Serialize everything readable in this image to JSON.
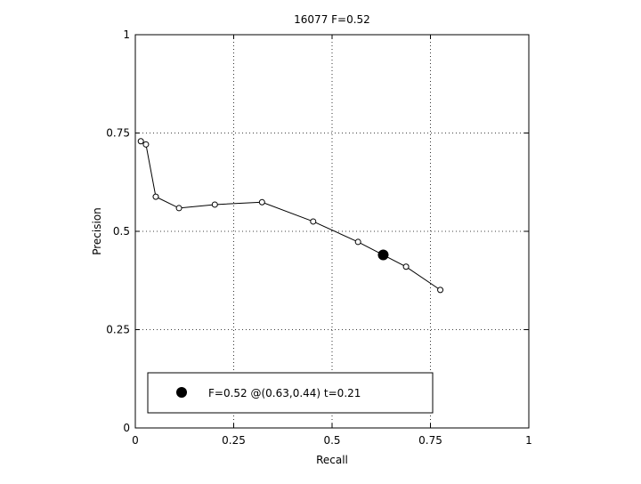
{
  "chart_data": {
    "type": "line",
    "title": "16077 F=0.52",
    "xlabel": "Recall",
    "ylabel": "Precision",
    "xlim": [
      0,
      1
    ],
    "ylim": [
      0,
      1
    ],
    "grid": true,
    "xticks": [
      0,
      0.25,
      0.5,
      0.75,
      1
    ],
    "yticks": [
      0,
      0.25,
      0.5,
      0.75,
      1
    ],
    "xtick_labels": [
      "0",
      "0.25",
      "0.5",
      "0.75",
      "1"
    ],
    "ytick_labels": [
      "0",
      "0.25",
      "0.5",
      "0.75",
      "1"
    ],
    "series": [
      {
        "x": [
          0.014,
          0.027,
          0.052,
          0.111,
          0.202,
          0.322,
          0.452,
          0.566,
          0.688,
          0.775
        ],
        "y": [
          0.729,
          0.721,
          0.588,
          0.559,
          0.568,
          0.574,
          0.525,
          0.473,
          0.41,
          0.351
        ],
        "marker": "open-circle"
      }
    ],
    "best_point": {
      "x": 0.63,
      "y": 0.44
    },
    "legend": {
      "text": "F=0.52 @(0.63,0.44) t=0.21",
      "placement": "bottom-left"
    }
  }
}
